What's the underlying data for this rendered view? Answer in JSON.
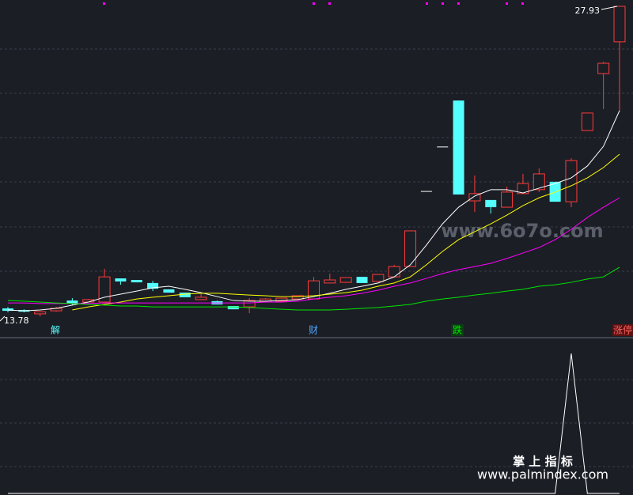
{
  "chart_data": {
    "type": "candlestick",
    "ylim": [
      13.78,
      27.93
    ],
    "candles": [
      [
        14.14,
        14.21,
        13.96,
        14.03
      ],
      [
        14.07,
        14.1,
        13.96,
        13.99
      ],
      [
        13.89,
        13.99,
        13.78,
        13.99
      ],
      [
        14.03,
        14.21,
        13.99,
        14.14
      ],
      [
        14.5,
        14.61,
        14.29,
        14.36
      ],
      [
        14.43,
        14.57,
        14.43,
        14.54
      ],
      [
        14.43,
        15.95,
        14.43,
        15.58
      ],
      [
        15.51,
        15.51,
        15.22,
        15.37
      ],
      [
        15.44,
        15.44,
        15.33,
        15.33
      ],
      [
        15.3,
        15.4,
        14.93,
        15.04
      ],
      [
        15.01,
        15.01,
        14.86,
        14.86
      ],
      [
        14.86,
        14.86,
        14.65,
        14.65
      ],
      [
        14.54,
        14.79,
        14.54,
        14.65
      ],
      [
        14.47,
        14.5,
        14.32,
        14.32
      ],
      [
        14.25,
        14.25,
        14.1,
        14.1
      ],
      [
        14.21,
        14.61,
        13.92,
        14.5
      ],
      [
        14.43,
        14.61,
        14.43,
        14.57
      ],
      [
        14.47,
        14.61,
        14.47,
        14.61
      ],
      [
        14.57,
        14.72,
        14.57,
        14.72
      ],
      [
        14.57,
        15.58,
        14.57,
        15.4
      ],
      [
        15.3,
        15.73,
        15.3,
        15.44
      ],
      [
        15.33,
        15.55,
        15.33,
        15.55
      ],
      [
        15.58,
        15.58,
        15.3,
        15.3
      ],
      [
        15.37,
        15.69,
        15.37,
        15.69
      ],
      [
        15.58,
        16.13,
        15.58,
        16.05
      ],
      [
        16.05,
        17.68,
        16.05,
        17.68
      ],
      [
        19.48,
        19.48,
        19.48,
        19.48
      ],
      [
        21.51,
        21.51,
        21.51,
        21.51
      ],
      [
        23.63,
        23.63,
        19.34,
        19.34
      ],
      [
        19.05,
        20.21,
        18.54,
        19.38
      ],
      [
        19.09,
        19.09,
        18.47,
        18.76
      ],
      [
        18.76,
        19.7,
        18.76,
        19.45
      ],
      [
        19.38,
        20.28,
        19.38,
        19.84
      ],
      [
        19.56,
        20.53,
        19.45,
        20.28
      ],
      [
        19.92,
        19.92,
        19.01,
        19.01
      ],
      [
        19.01,
        21.0,
        18.76,
        20.89
      ],
      [
        22.26,
        23.06,
        22.26,
        23.06
      ],
      [
        24.86,
        25.4,
        23.24,
        25.33
      ],
      [
        26.31,
        27.93,
        23.17,
        27.93
      ]
    ],
    "up_color": "#ff3b3b",
    "down_color": "#54ffff",
    "flat_color": "#ffffff",
    "series": [
      {
        "color": "#ffffff",
        "values": [
          14.07,
          14.03,
          14.07,
          14.14,
          14.29,
          14.43,
          14.65,
          14.79,
          14.93,
          15.08,
          15.15,
          15.01,
          14.86,
          14.68,
          14.5,
          14.47,
          14.47,
          14.5,
          14.54,
          14.68,
          14.83,
          15.01,
          15.15,
          15.3,
          15.58,
          16.13,
          17.03,
          18.0,
          18.76,
          19.27,
          19.56,
          19.56,
          19.41,
          19.63,
          19.84,
          20.1,
          20.64,
          21.54,
          23.17
        ]
      },
      {
        "color": "#ffff00",
        "values": [
          null,
          null,
          null,
          null,
          14.07,
          14.21,
          14.32,
          14.43,
          14.57,
          14.65,
          14.72,
          14.79,
          14.83,
          14.83,
          14.79,
          14.75,
          14.72,
          14.68,
          14.68,
          14.72,
          14.79,
          14.86,
          14.97,
          15.15,
          15.3,
          15.58,
          16.13,
          16.74,
          17.28,
          17.64,
          18.0,
          18.4,
          18.83,
          19.19,
          19.45,
          19.74,
          20.1,
          20.57,
          21.18
        ]
      },
      {
        "color": "#ff00ff",
        "values": [
          14.39,
          14.39,
          14.36,
          14.36,
          14.36,
          14.36,
          14.39,
          14.39,
          14.39,
          14.39,
          14.39,
          14.39,
          14.39,
          14.39,
          14.39,
          14.39,
          14.43,
          14.43,
          14.47,
          14.57,
          14.65,
          14.72,
          14.83,
          14.97,
          15.15,
          15.3,
          15.51,
          15.73,
          15.91,
          16.05,
          16.2,
          16.42,
          16.67,
          16.92,
          17.28,
          17.75,
          18.29,
          18.76,
          19.19
        ]
      },
      {
        "color": "#00e600",
        "values": [
          14.5,
          14.47,
          14.43,
          14.39,
          14.36,
          14.32,
          14.29,
          14.25,
          14.25,
          14.21,
          14.21,
          14.21,
          14.21,
          14.21,
          14.21,
          14.18,
          14.14,
          14.1,
          14.07,
          14.07,
          14.07,
          14.1,
          14.14,
          14.18,
          14.25,
          14.32,
          14.47,
          14.57,
          14.65,
          14.75,
          14.83,
          14.93,
          15.01,
          15.15,
          15.22,
          15.33,
          15.48,
          15.58,
          16.02
        ]
      }
    ],
    "indicator": {
      "color": "#ffffff",
      "ylim": [
        0,
        1
      ],
      "values": [
        0,
        0,
        0,
        0,
        0,
        0,
        0,
        0,
        0,
        0,
        0,
        0,
        0,
        0,
        0,
        0,
        0,
        0,
        0,
        0,
        0,
        0,
        0,
        0,
        0,
        0,
        0,
        0,
        0,
        0,
        0,
        0,
        0,
        0,
        0,
        1,
        0,
        0,
        0
      ]
    },
    "signals": [
      "解",
      "财",
      "跌",
      "涨停"
    ],
    "watermarks": [
      "www.6o7o.com",
      "掌 上 指 标",
      "www.palmindex.com"
    ]
  }
}
